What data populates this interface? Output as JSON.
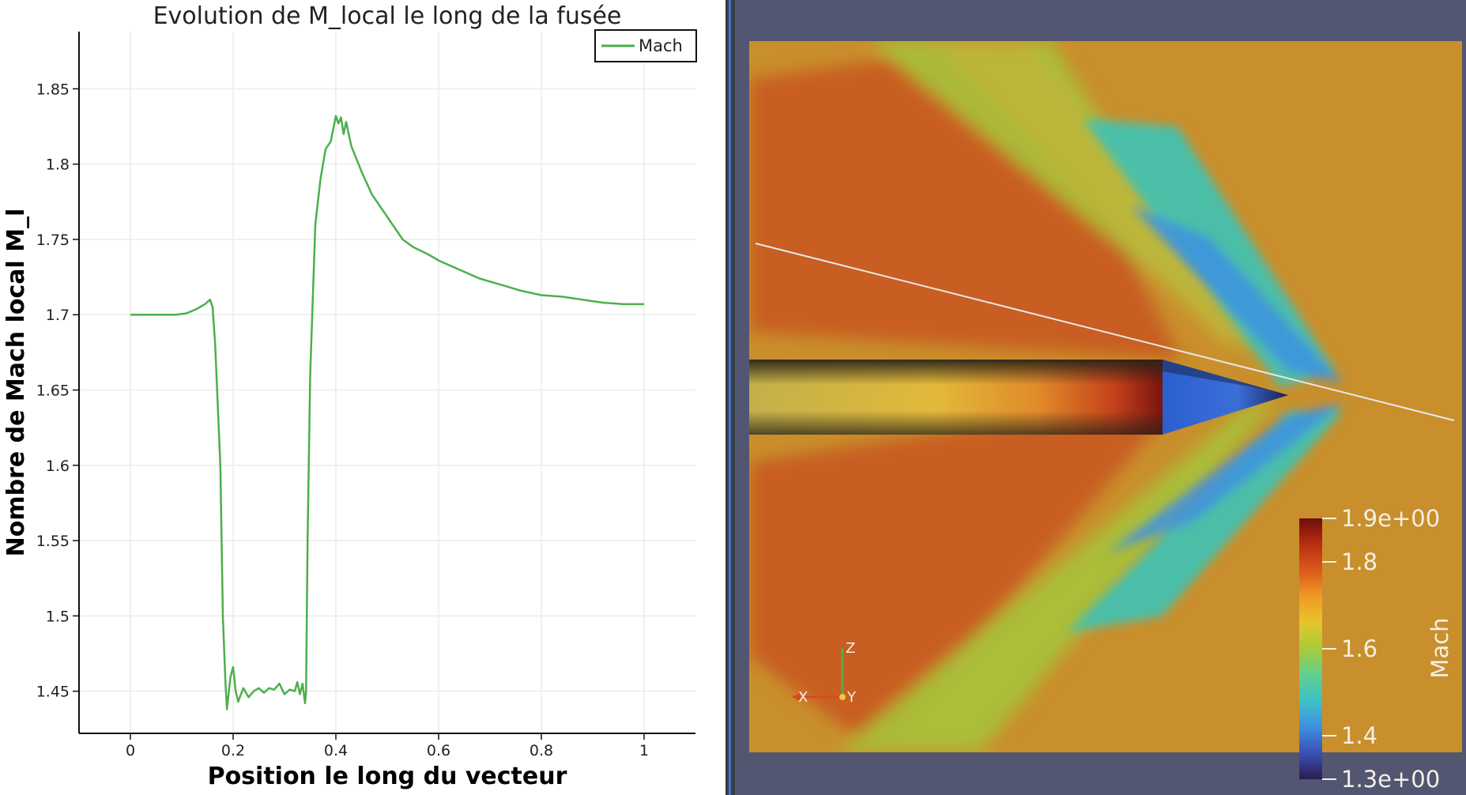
{
  "chart_data": {
    "type": "line",
    "title": "Evolution de M_local le long de la fusée",
    "xlabel": "Position le long du vecteur",
    "ylabel": "Nombre de Mach local M_l",
    "xlim": [
      -0.1,
      1.1
    ],
    "ylim": [
      1.422,
      1.888
    ],
    "xticks": [
      0,
      0.2,
      0.4,
      0.6,
      0.8,
      1
    ],
    "xtick_labels": [
      "0",
      "0.2",
      "0.4",
      "0.6",
      "0.8",
      "1"
    ],
    "yticks": [
      1.45,
      1.5,
      1.55,
      1.6,
      1.65,
      1.7,
      1.75,
      1.8,
      1.85
    ],
    "ytick_labels": [
      "1.45",
      "1.5",
      "1.55",
      "1.6",
      "1.65",
      "1.7",
      "1.75",
      "1.8",
      "1.85"
    ],
    "grid": true,
    "legend_position": "top-right",
    "series": [
      {
        "name": "Mach",
        "color": "#4bb04b",
        "x": [
          0,
          0.03,
          0.06,
          0.09,
          0.11,
          0.13,
          0.145,
          0.155,
          0.16,
          0.165,
          0.175,
          0.18,
          0.185,
          0.188,
          0.19,
          0.195,
          0.2,
          0.205,
          0.21,
          0.215,
          0.22,
          0.23,
          0.24,
          0.25,
          0.26,
          0.27,
          0.28,
          0.29,
          0.3,
          0.31,
          0.32,
          0.325,
          0.33,
          0.335,
          0.34,
          0.342,
          0.345,
          0.35,
          0.36,
          0.37,
          0.38,
          0.39,
          0.4,
          0.405,
          0.41,
          0.415,
          0.42,
          0.43,
          0.45,
          0.47,
          0.5,
          0.53,
          0.55,
          0.58,
          0.6,
          0.64,
          0.68,
          0.72,
          0.76,
          0.8,
          0.84,
          0.88,
          0.92,
          0.96,
          1.0
        ],
        "y": [
          1.7,
          1.7,
          1.7,
          1.7,
          1.701,
          1.704,
          1.707,
          1.71,
          1.705,
          1.68,
          1.6,
          1.5,
          1.455,
          1.438,
          1.445,
          1.46,
          1.466,
          1.45,
          1.443,
          1.448,
          1.452,
          1.446,
          1.45,
          1.452,
          1.449,
          1.452,
          1.451,
          1.455,
          1.448,
          1.451,
          1.45,
          1.456,
          1.448,
          1.455,
          1.442,
          1.45,
          1.55,
          1.66,
          1.76,
          1.79,
          1.81,
          1.815,
          1.832,
          1.827,
          1.831,
          1.82,
          1.828,
          1.812,
          1.795,
          1.78,
          1.765,
          1.75,
          1.745,
          1.74,
          1.736,
          1.73,
          1.724,
          1.72,
          1.716,
          1.713,
          1.712,
          1.71,
          1.708,
          1.707,
          1.707
        ]
      }
    ]
  },
  "render_view": {
    "colorbar": {
      "title": "Mach",
      "range": [
        1.3,
        1.9
      ],
      "labels": [
        "1.9e+00",
        "1.8",
        "1.6",
        "1.4",
        "1.3e+00"
      ],
      "label_values": [
        1.9,
        1.8,
        1.6,
        1.4,
        1.3
      ],
      "colors": [
        "#2a1d4f",
        "#3a4fb4",
        "#3f8fe0",
        "#3fc1c6",
        "#5fd08f",
        "#a8cc3a",
        "#e5c52c",
        "#f09a26",
        "#dc5a1c",
        "#b92e12",
        "#6f0d0a"
      ]
    },
    "axes_triad": {
      "x": "X",
      "y": "Y",
      "z": "Z"
    },
    "background_color": "#525670",
    "field_color": "#c98f2c"
  }
}
